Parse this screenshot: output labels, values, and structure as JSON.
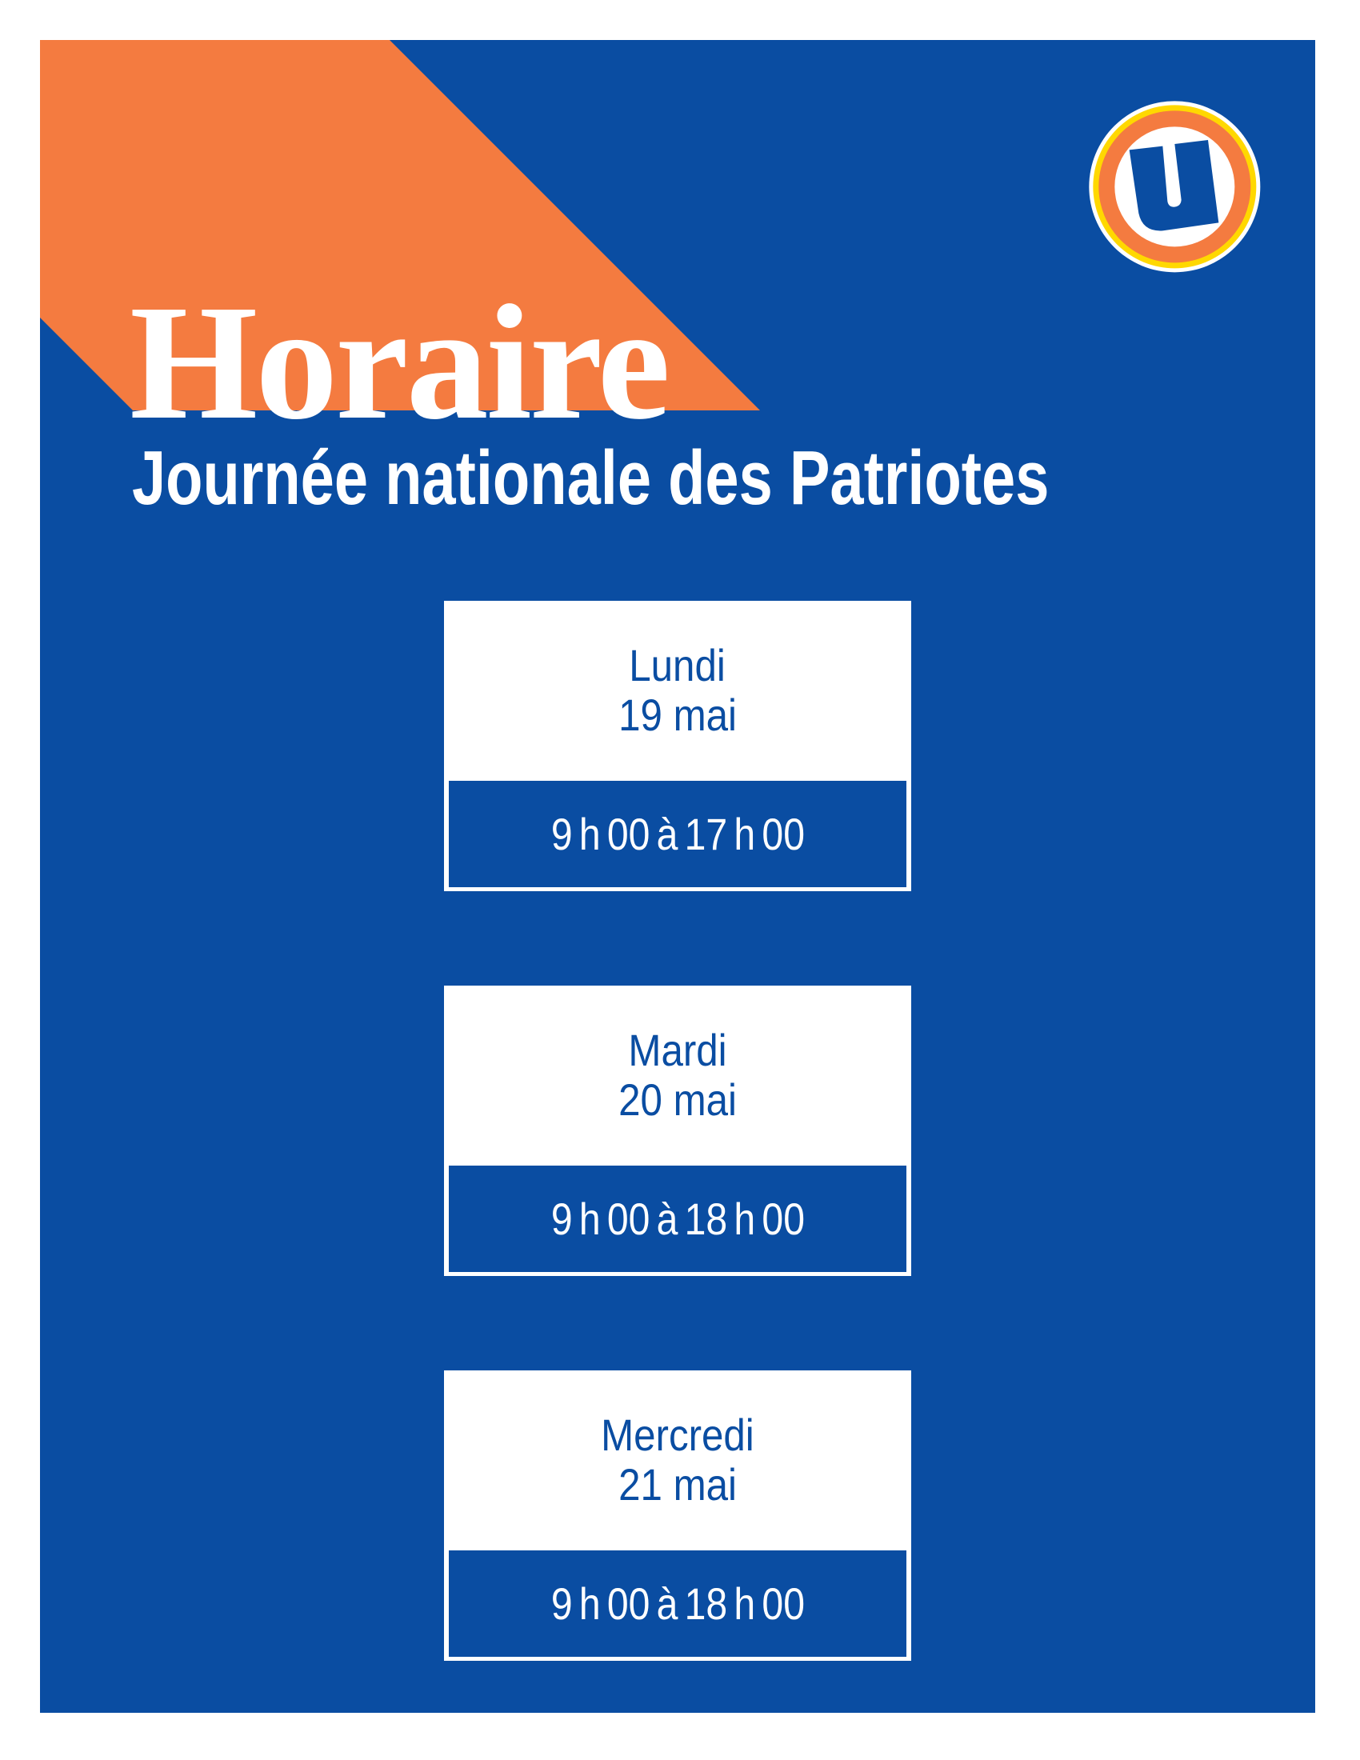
{
  "header": {
    "title": "Horaire",
    "subtitle": "Journée nationale des Patriotes",
    "logo_letter": "U"
  },
  "colors": {
    "background_blue": "#0a4da2",
    "accent_orange": "#f47b40",
    "logo_yellow": "#ffd800"
  },
  "schedule": [
    {
      "day": "Lundi",
      "date": "19 mai",
      "hours": "9 h 00 à 17 h 00"
    },
    {
      "day": "Mardi",
      "date": "20 mai",
      "hours": "9 h 00 à 18 h 00"
    },
    {
      "day": "Mercredi",
      "date": "21 mai",
      "hours": "9 h 00 à 18 h 00"
    }
  ]
}
